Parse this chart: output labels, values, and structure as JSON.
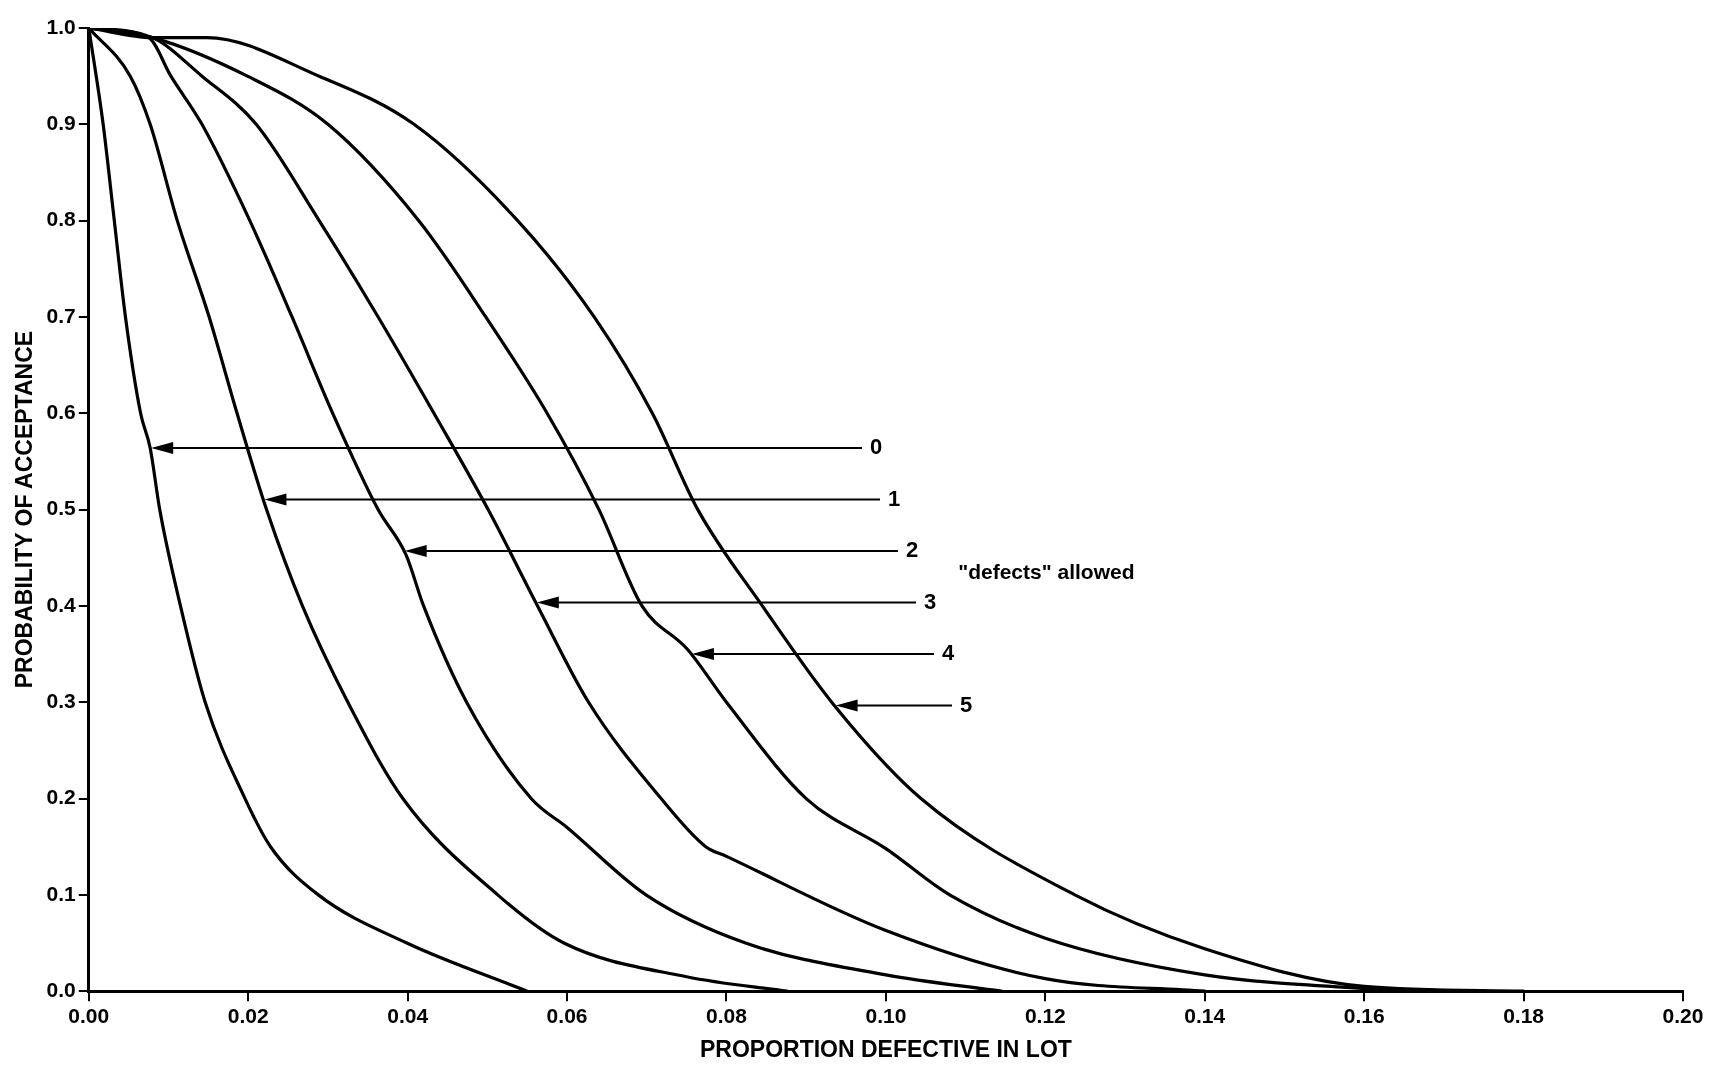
{
  "chart_data": {
    "type": "line",
    "xlabel": "PROPORTION DEFECTIVE IN LOT",
    "ylabel": "PROBABILITY OF ACCEPTANCE",
    "xlim": [
      0,
      0.2
    ],
    "xticks": [
      {
        "value": 0,
        "label": "0.00"
      },
      {
        "value": 0.02,
        "label": "0.02"
      },
      {
        "value": 0.04,
        "label": "0.04"
      },
      {
        "value": 0.06,
        "label": "0.06"
      },
      {
        "value": 0.08,
        "label": "0.08"
      },
      {
        "value": 0.1,
        "label": "0.10"
      },
      {
        "value": 0.12,
        "label": "0.12"
      },
      {
        "value": 0.14,
        "label": "0.14"
      },
      {
        "value": 0.16,
        "label": "0.16"
      },
      {
        "value": 0.18,
        "label": "0.18"
      },
      {
        "value": 0.2,
        "label": "0.20"
      }
    ],
    "ylim": [
      0,
      1
    ],
    "yticks": [
      {
        "value": 0,
        "label": "0.0"
      },
      0.1,
      0.2,
      0.3,
      0.4,
      0.5,
      0.6,
      0.7,
      0.8,
      0.9,
      {
        "value": 1,
        "label": "1.0"
      }
    ],
    "grid": false,
    "legend": false,
    "marker": "none",
    "line_style": "solid",
    "series": [
      {
        "color": "#000000",
        "x": [
          0,
          0.0018,
          0.0032,
          0.0046,
          0.0065,
          0.0077,
          0.0089,
          0.0115,
          0.0146,
          0.0196,
          0.0228,
          0.0288,
          0.0399,
          0.055
        ],
        "values": [
          1,
          0.9,
          0.8,
          0.7,
          0.6,
          0.564,
          0.5,
          0.4,
          0.3,
          0.2,
          0.15,
          0.1,
          0.05,
          0
        ]
      },
      {
        "color": "#000000",
        "x": [
          0,
          0.0052,
          0.0077,
          0.0111,
          0.0151,
          0.0186,
          0.0223,
          0.0268,
          0.0325,
          0.0394,
          0.0513,
          0.0596,
          0.075,
          0.0876
        ],
        "values": [
          1,
          0.95,
          0.9,
          0.8,
          0.7,
          0.6,
          0.5,
          0.4,
          0.3,
          0.2,
          0.1,
          0.05,
          0.015,
          0
        ]
      },
      {
        "color": "#000000",
        "x": [
          0,
          0.0075,
          0.0103,
          0.0142,
          0.0202,
          0.0255,
          0.0306,
          0.0363,
          0.0398,
          0.042,
          0.0474,
          0.0555,
          0.06,
          0.0699,
          0.0824,
          0.1,
          0.1145
        ],
        "values": [
          1,
          0.99,
          0.95,
          0.9,
          0.8,
          0.7,
          0.6,
          0.5,
          0.453,
          0.4,
          0.3,
          0.2,
          0.17,
          0.1,
          0.05,
          0.017,
          0
        ]
      },
      {
        "color": "#000000",
        "x": [
          0,
          0.008,
          0.0142,
          0.021,
          0.0289,
          0.0363,
          0.0433,
          0.0501,
          0.0563,
          0.0627,
          0.0718,
          0.0774,
          0.08,
          0.1,
          0.12,
          0.14
        ],
        "values": [
          1,
          0.99,
          0.95,
          0.9,
          0.8,
          0.7,
          0.6,
          0.5,
          0.4,
          0.3,
          0.2,
          0.15,
          0.14,
          0.063,
          0.013,
          0
        ]
      },
      {
        "color": "#000000",
        "x": [
          0,
          0.008,
          0.0199,
          0.03,
          0.0414,
          0.0498,
          0.0575,
          0.064,
          0.0694,
          0.0751,
          0.08,
          0.09,
          0.1,
          0.108,
          0.12,
          0.14,
          0.165
        ],
        "values": [
          1,
          0.99,
          0.95,
          0.9,
          0.8,
          0.7,
          0.6,
          0.5,
          0.4,
          0.355,
          0.3,
          0.2,
          0.148,
          0.1,
          0.055,
          0.017,
          0
        ]
      },
      {
        "color": "#000000",
        "x": [
          0,
          0.008,
          0.0148,
          0.0289,
          0.0408,
          0.0538,
          0.0634,
          0.0707,
          0.0764,
          0.0845,
          0.0934,
          0.1044,
          0.1237,
          0.14,
          0.16,
          0.18
        ],
        "values": [
          1,
          0.99,
          0.99,
          0.95,
          0.9,
          0.8,
          0.7,
          0.6,
          0.5,
          0.4,
          0.298,
          0.2,
          0.1,
          0.044,
          0.005,
          0
        ]
      }
    ],
    "annotations": [
      "0",
      "1",
      "2",
      "3",
      "4",
      "5",
      "\"defects\" allowed"
    ]
  }
}
